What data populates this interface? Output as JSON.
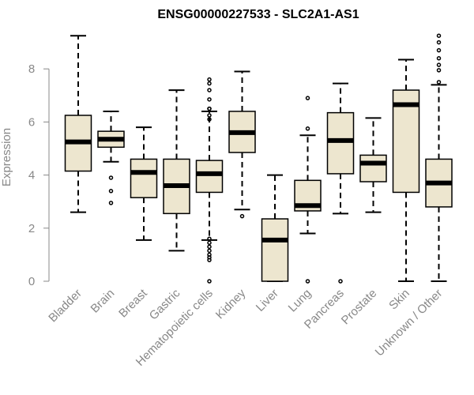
{
  "chart_data": {
    "type": "boxplot",
    "title": "ENSG00000227533 - SLC2A1-AS1",
    "xlabel": "",
    "ylabel": "Expression",
    "ylim": [
      0,
      9.3
    ],
    "yticks": [
      0,
      2,
      4,
      6,
      8
    ],
    "box_color": "#ede6cf",
    "categories": [
      "Bladder",
      "Brain",
      "Breast",
      "Gastric",
      "Hematopoietic cells",
      "Kidney",
      "Liver",
      "Lung",
      "Pancreas",
      "Prostate",
      "Skin",
      "Unknown / Other"
    ],
    "boxes": [
      {
        "whisker_low": 2.6,
        "q1": 4.15,
        "median": 5.25,
        "q3": 6.25,
        "whisker_high": 9.25,
        "outliers": []
      },
      {
        "whisker_low": 4.5,
        "q1": 5.05,
        "median": 5.35,
        "q3": 5.65,
        "whisker_high": 6.4,
        "outliers": [
          3.9,
          3.4,
          2.95
        ]
      },
      {
        "whisker_low": 1.55,
        "q1": 3.15,
        "median": 4.1,
        "q3": 4.6,
        "whisker_high": 5.8,
        "outliers": []
      },
      {
        "whisker_low": 1.15,
        "q1": 2.55,
        "median": 3.6,
        "q3": 4.6,
        "whisker_high": 7.2,
        "outliers": []
      },
      {
        "whisker_low": 1.55,
        "q1": 3.35,
        "median": 4.05,
        "q3": 4.55,
        "whisker_high": 6.4,
        "outliers": [
          7.6,
          7.45,
          7.2,
          6.85,
          6.5,
          6.5,
          6.25,
          6.1,
          1.6,
          1.45,
          1.3,
          1.15,
          1.0,
          0.9,
          0.8,
          0.0
        ]
      },
      {
        "whisker_low": 2.7,
        "q1": 4.85,
        "median": 5.6,
        "q3": 6.4,
        "whisker_high": 7.9,
        "outliers": [
          2.45
        ]
      },
      {
        "whisker_low": 0.0,
        "q1": 0.0,
        "median": 1.55,
        "q3": 2.35,
        "whisker_high": 4.0,
        "outliers": []
      },
      {
        "whisker_low": 1.8,
        "q1": 2.65,
        "median": 2.85,
        "q3": 3.8,
        "whisker_high": 5.5,
        "outliers": [
          6.9,
          5.75,
          0.0
        ]
      },
      {
        "whisker_low": 2.55,
        "q1": 4.05,
        "median": 5.3,
        "q3": 6.35,
        "whisker_high": 7.45,
        "outliers": [
          0.0
        ]
      },
      {
        "whisker_low": 2.6,
        "q1": 3.75,
        "median": 4.45,
        "q3": 4.75,
        "whisker_high": 6.15,
        "outliers": []
      },
      {
        "whisker_low": 0.0,
        "q1": 3.35,
        "median": 6.65,
        "q3": 7.2,
        "whisker_high": 8.35,
        "outliers": []
      },
      {
        "whisker_low": 0.0,
        "q1": 2.8,
        "median": 3.7,
        "q3": 4.6,
        "whisker_high": 7.4,
        "outliers": [
          9.25,
          9.0,
          8.7,
          8.4,
          8.15,
          7.95,
          7.5
        ]
      }
    ]
  }
}
